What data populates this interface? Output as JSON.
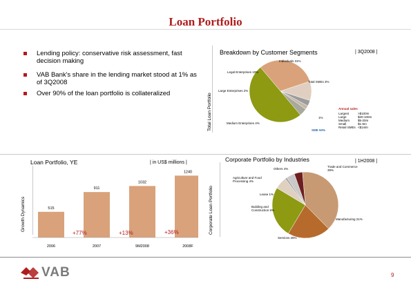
{
  "title": "Loan Portfolio",
  "bullets": [
    "Lending policy: conservative risk assessment, fast decision making",
    "VAB Bank's share in the lending market stood at 1% as of 3Q2008",
    "Over 90% of the loan portfolio is collateralized"
  ],
  "customer_segments": {
    "title": "Breakdown by Customer Segments",
    "period": "| 3Q2008 |",
    "axis_label": "Total Loan Portfolio",
    "labels": [
      "Individuals 31%",
      "Legal Enterprises 10%",
      "Total SMEs 3%",
      "Large Enterprises 2%",
      "Medium Enterprises 4%",
      "SME 50%"
    ],
    "small_labels": [
      "1%"
    ],
    "annual_sales_title": "Annual sales",
    "annual_sales": [
      [
        "Largest",
        ">$100m"
      ],
      [
        "Large",
        "$20-100m"
      ],
      [
        "Medium",
        "$5-20m"
      ],
      [
        "Small",
        "$1-5m"
      ],
      [
        "Retail SMEs",
        "<$1mln"
      ]
    ],
    "colors": {
      "individuals": "#d9a27a",
      "legal": "#e0cfc0",
      "sme": "#8d9a12",
      "medium": "#a8a89c",
      "total_smes": "#9c9c9c",
      "large": "#c7b7a6",
      "small": "#a6652a"
    }
  },
  "loan_portfolio": {
    "title": "Loan Portfolio, YE",
    "unit": "| in US$ millions |",
    "axis_label": "Growth Dynamics",
    "growth_labels": [
      "+77%",
      "+13%",
      "+36%"
    ],
    "yoy_label": "YoY",
    "color": "#d9a27a"
  },
  "industries": {
    "title": "Corporate Portfolio by Industries",
    "period": "| 1H2008 |",
    "axis_label": "Corporate Loan Portfolio",
    "labels": [
      "Others 4%",
      "Trade and Commerce 39%",
      "Agriculture and Food Processing 4%",
      "Lease 1%",
      "Building and Construction 6%",
      "Manufacturing 21%",
      "Services 25%"
    ]
  },
  "chart_data": [
    {
      "type": "pie",
      "title": "Breakdown by Customer Segments",
      "categories": [
        "Individuals",
        "Legal Enterprises",
        "Total SMEs",
        "Large Enterprises",
        "Medium Enterprises",
        "SME"
      ],
      "values": [
        31,
        10,
        3,
        2,
        4,
        50
      ]
    },
    {
      "type": "bar",
      "title": "Loan Portfolio, YE",
      "categories": [
        "2006",
        "2007",
        "9M2008",
        "2008F"
      ],
      "values": [
        515,
        911,
        1032,
        1240
      ],
      "ylim": [
        0,
        1300
      ]
    },
    {
      "type": "pie",
      "title": "Corporate Portfolio by Industries",
      "categories": [
        "Trade and Commerce",
        "Manufacturing",
        "Services",
        "Building and Construction",
        "Lease",
        "Agriculture and Food Processing",
        "Others"
      ],
      "values": [
        39,
        21,
        25,
        6,
        1,
        4,
        4
      ],
      "colors": [
        "#c79a73",
        "#b66b2c",
        "#8d9a12",
        "#dfd0c0",
        "#a9a9a9",
        "#c9c9c9",
        "#6e1f1f"
      ]
    }
  ],
  "footer": {
    "logo_text": "VAB",
    "page_number": "9"
  }
}
